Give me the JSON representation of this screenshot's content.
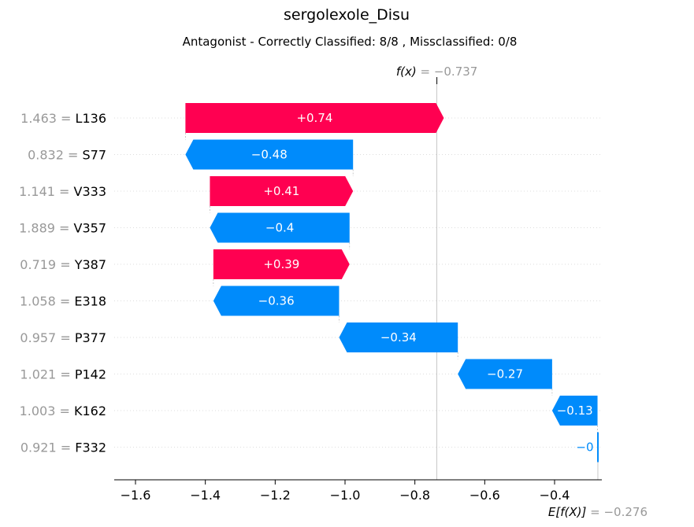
{
  "chart_data": {
    "type": "waterfall",
    "title": "sergolexole_Disu",
    "subtitle": "Antagonist - Correctly Classified: 8/8 , Missclassified: 0/8",
    "fx_label": "f(x)",
    "fx_value_text": "= −0.737",
    "fx": -0.737,
    "efx_label": "E[f(X)]",
    "efx_value_text": "= −0.276",
    "efx": -0.276,
    "xlim": [
      -1.67,
      -0.28
    ],
    "xticks": [
      -1.6,
      -1.4,
      -1.2,
      -1.0,
      -0.8,
      -0.6,
      -0.4
    ],
    "xtick_labels": [
      "−1.6",
      "−1.4",
      "−1.2",
      "−1.0",
      "−0.8",
      "−0.6",
      "−0.4"
    ],
    "colors": {
      "positive": "#ff0051",
      "negative": "#008bfb",
      "value_text": "#999999"
    },
    "features": [
      {
        "value": "1.463",
        "name": "L136",
        "shap": 0.74,
        "label": "+0.74"
      },
      {
        "value": "0.832",
        "name": "S77",
        "shap": -0.48,
        "label": "−0.48"
      },
      {
        "value": "1.141",
        "name": "V333",
        "shap": 0.41,
        "label": "+0.41"
      },
      {
        "value": "1.889",
        "name": "V357",
        "shap": -0.4,
        "label": "−0.4"
      },
      {
        "value": "0.719",
        "name": "Y387",
        "shap": 0.39,
        "label": "+0.39"
      },
      {
        "value": "1.058",
        "name": "E318",
        "shap": -0.36,
        "label": "−0.36"
      },
      {
        "value": "0.957",
        "name": "P377",
        "shap": -0.34,
        "label": "−0.34"
      },
      {
        "value": "1.021",
        "name": "P142",
        "shap": -0.27,
        "label": "−0.27"
      },
      {
        "value": "1.003",
        "name": "K162",
        "shap": -0.13,
        "label": "−0.13"
      },
      {
        "value": "0.921",
        "name": "F332",
        "shap": -0.001,
        "label": "−0"
      }
    ]
  }
}
